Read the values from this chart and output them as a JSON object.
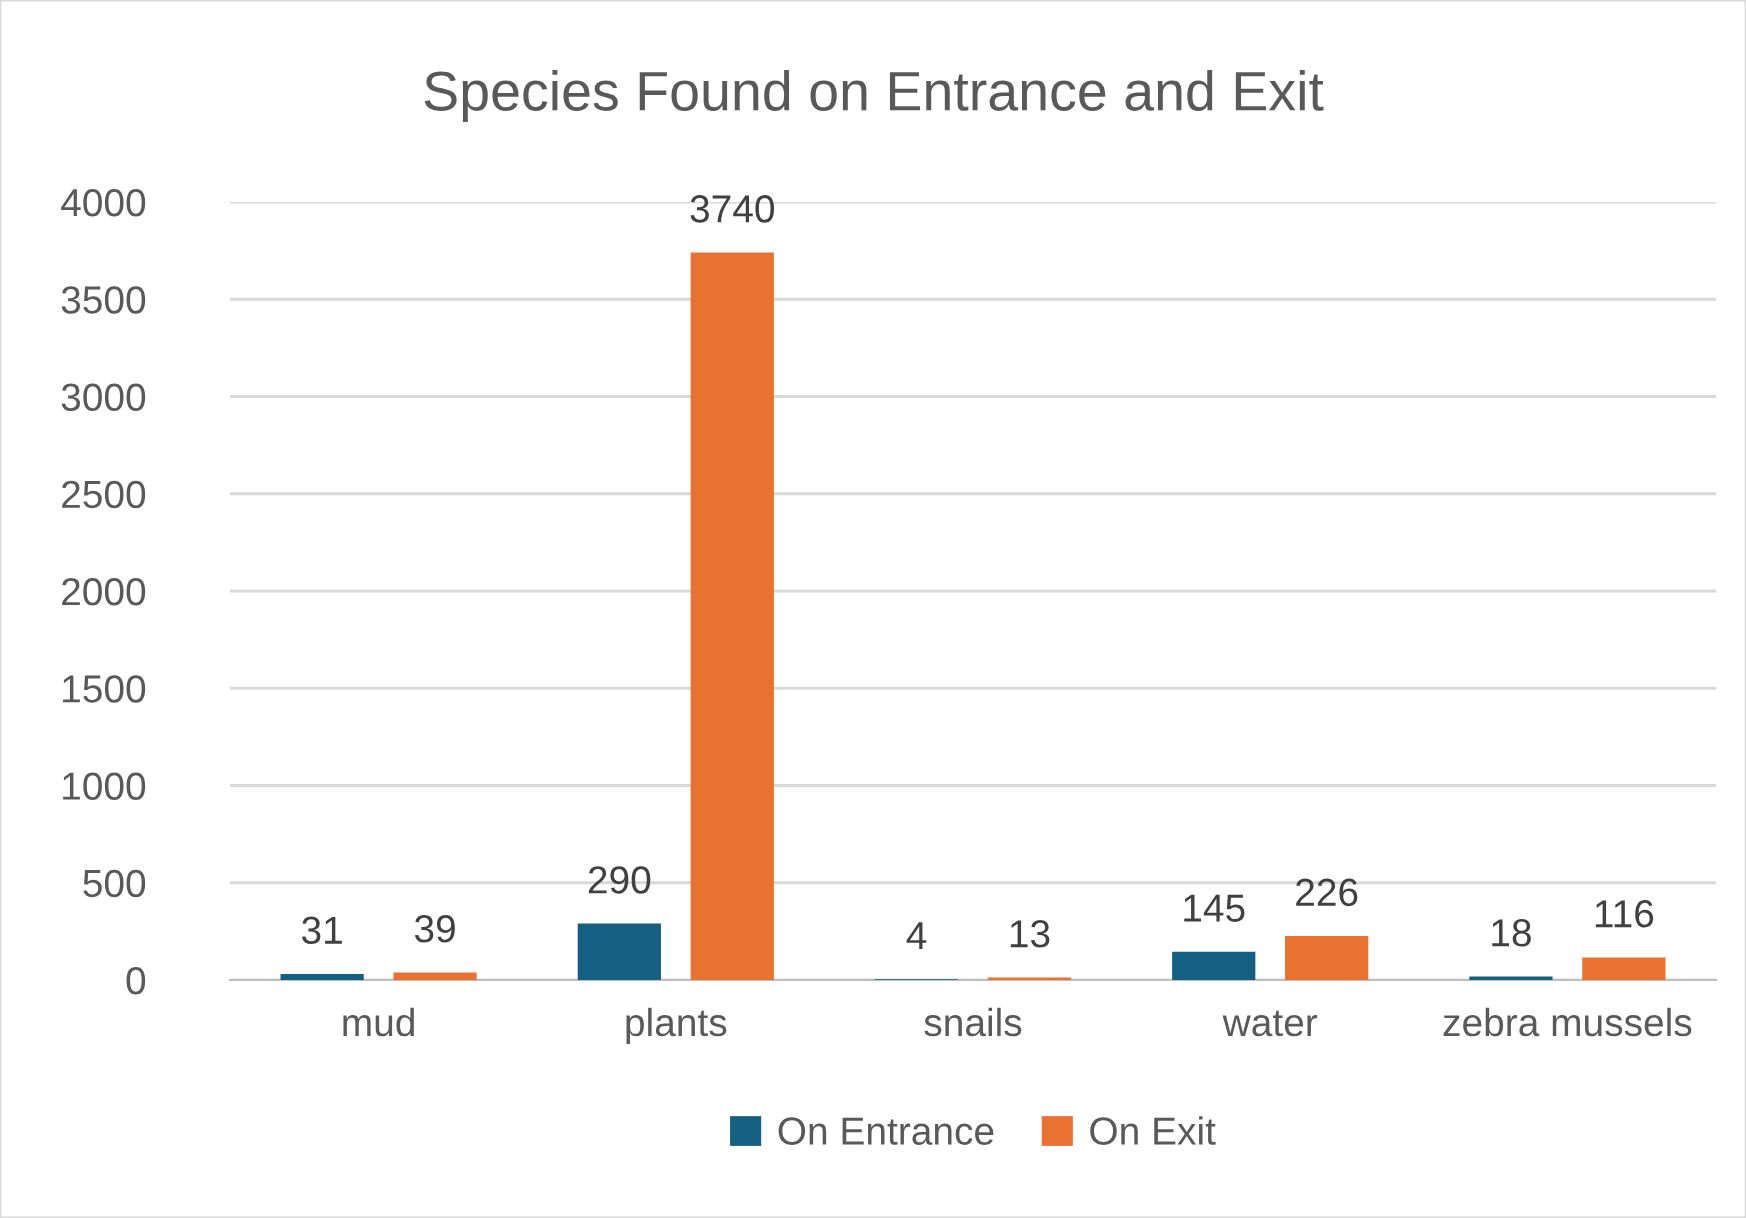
{
  "chart_data": {
    "type": "bar",
    "title": "Species Found on Entrance and Exit",
    "categories": [
      "mud",
      "plants",
      "snails",
      "water",
      "zebra mussels"
    ],
    "series": [
      {
        "name": "On Entrance",
        "color": "#156082",
        "values": [
          31,
          290,
          4,
          145,
          18
        ]
      },
      {
        "name": "On Exit",
        "color": "#e97132",
        "values": [
          39,
          3740,
          13,
          226,
          116
        ]
      }
    ],
    "ylim": [
      0,
      4000
    ],
    "yticks": [
      0,
      500,
      1000,
      1500,
      2000,
      2500,
      3000,
      3500,
      4000
    ],
    "grid": "y",
    "legend": "bottom",
    "data_labels": true
  }
}
